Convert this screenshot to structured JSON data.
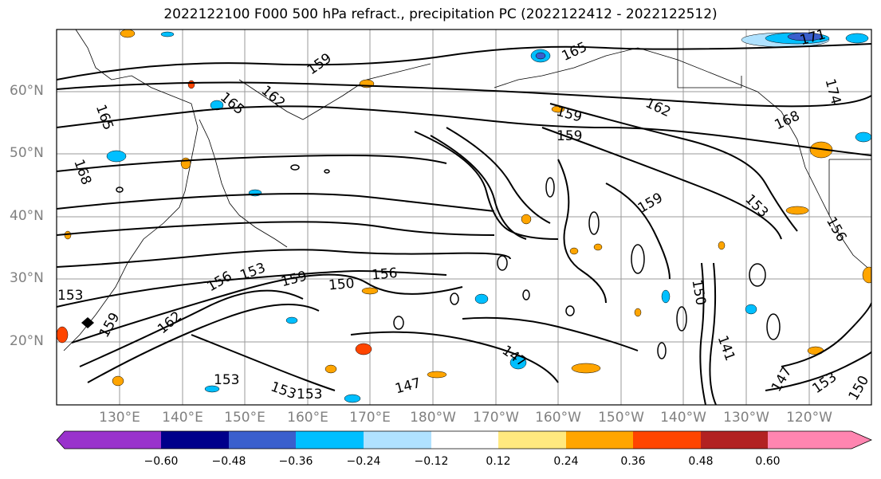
{
  "title": "2022122100 F000 500 hPa refract., precipitation PC (2022122412 - 2022122512)",
  "lat_labels": [
    "60°N",
    "50°N",
    "40°N",
    "30°N",
    "20°N"
  ],
  "lon_labels": [
    "130°E",
    "140°E",
    "150°E",
    "160°E",
    "170°E",
    "180°W",
    "170°W",
    "160°W",
    "150°W",
    "140°W",
    "130°W",
    "120°W"
  ],
  "contour_labels": [
    "165",
    "159",
    "165",
    "162",
    "165",
    "171",
    "174",
    "168",
    "162",
    "159",
    "159",
    "168",
    "159",
    "153",
    "156",
    "153",
    "159",
    "156",
    "156",
    "153",
    "150",
    "162",
    "150",
    "147",
    "147",
    "141",
    "153",
    "150",
    "147",
    "153",
    "153",
    "153",
    "159"
  ],
  "colorbar": {
    "tick_labels": [
      "−0.60",
      "−0.48",
      "−0.36",
      "−0.24",
      "−0.12",
      "0.12",
      "0.24",
      "0.36",
      "0.48",
      "0.60"
    ],
    "colors": [
      "#9932cc",
      "#00008b",
      "#3a5fcd",
      "#00bfff",
      "#b0e2ff",
      "#ffffff",
      "#ffe97f",
      "#ffa500",
      "#ff4500",
      "#b22222",
      "#ff85b0",
      "#ff85b0"
    ]
  }
}
